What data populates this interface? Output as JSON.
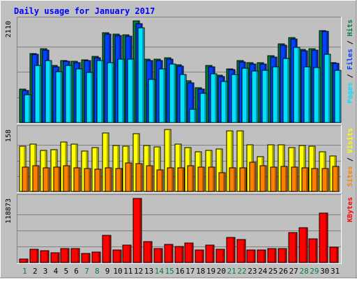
{
  "chart_data": [
    {
      "type": "bar",
      "panel": "pages-files-hits",
      "title": "Daily usage for January 2017",
      "ylabel_parts": [
        "Pages",
        " / ",
        "Files",
        " / ",
        "Hits"
      ],
      "max_label": "2110",
      "ylim": [
        0,
        2110
      ],
      "grid": true,
      "categories": [
        "1",
        "2",
        "3",
        "4",
        "5",
        "6",
        "7",
        "8",
        "9",
        "10",
        "11",
        "12",
        "13",
        "14",
        "15",
        "16",
        "17",
        "18",
        "19",
        "20",
        "21",
        "22",
        "23",
        "24",
        "25",
        "26",
        "27",
        "28",
        "29",
        "30",
        "31"
      ],
      "weekend_days": [
        "1",
        "7",
        "8",
        "14",
        "15",
        "21",
        "22",
        "28",
        "29"
      ],
      "series": [
        {
          "name": "Hits",
          "color": "#008040",
          "values": [
            690,
            1430,
            1530,
            1180,
            1290,
            1270,
            1300,
            1370,
            1870,
            1840,
            1820,
            2110,
            1310,
            1310,
            1350,
            1200,
            860,
            720,
            1180,
            980,
            1120,
            1280,
            1240,
            1240,
            1390,
            1630,
            1770,
            1520,
            1530,
            1910,
            1250
          ]
        },
        {
          "name": "Files",
          "color": "#0040ff",
          "values": [
            660,
            1410,
            1500,
            1150,
            1270,
            1240,
            1280,
            1340,
            1840,
            1810,
            1790,
            2050,
            1290,
            1290,
            1320,
            1170,
            830,
            700,
            1150,
            950,
            1100,
            1260,
            1210,
            1220,
            1360,
            1600,
            1740,
            1490,
            1500,
            1890,
            1230
          ]
        },
        {
          "name": "Pages",
          "color": "#00e0ff",
          "values": [
            580,
            1190,
            1290,
            1060,
            1180,
            1110,
            1040,
            1280,
            1250,
            1310,
            1310,
            1960,
            900,
            1110,
            1210,
            990,
            280,
            600,
            1010,
            850,
            1000,
            1130,
            1070,
            1080,
            1150,
            1330,
            1560,
            1160,
            1140,
            1420,
            1090
          ]
        }
      ]
    },
    {
      "type": "bar",
      "panel": "visits-sites",
      "ylabel_parts": [
        "Sites",
        " / ",
        "Visits"
      ],
      "max_label": "158",
      "ylim": [
        0,
        158
      ],
      "grid": true,
      "categories": [
        "1",
        "2",
        "3",
        "4",
        "5",
        "6",
        "7",
        "8",
        "9",
        "10",
        "11",
        "12",
        "13",
        "14",
        "15",
        "16",
        "17",
        "18",
        "19",
        "20",
        "21",
        "22",
        "23",
        "24",
        "25",
        "26",
        "27",
        "28",
        "29",
        "30",
        "31"
      ],
      "series": [
        {
          "name": "Visits",
          "color": "#ffff00",
          "values": [
            115,
            120,
            104,
            107,
            126,
            121,
            103,
            111,
            149,
            117,
            116,
            148,
            118,
            114,
            158,
            120,
            111,
            101,
            104,
            108,
            154,
            154,
            119,
            89,
            119,
            119,
            112,
            117,
            116,
            102,
            91
          ]
        },
        {
          "name": "Sites",
          "color": "#ff8000",
          "values": [
            62,
            66,
            60,
            62,
            66,
            61,
            58,
            56,
            61,
            58,
            73,
            71,
            66,
            55,
            60,
            60,
            66,
            63,
            63,
            48,
            60,
            60,
            75,
            65,
            63,
            64,
            62,
            61,
            58,
            59,
            64
          ]
        }
      ]
    },
    {
      "type": "bar",
      "panel": "kbytes",
      "ylabel_parts": [
        "KBytes"
      ],
      "max_label": "118873",
      "ylim": [
        0,
        118873
      ],
      "grid": true,
      "categories": [
        "1",
        "2",
        "3",
        "4",
        "5",
        "6",
        "7",
        "8",
        "9",
        "10",
        "11",
        "12",
        "13",
        "14",
        "15",
        "16",
        "17",
        "18",
        "19",
        "20",
        "21",
        "22",
        "23",
        "24",
        "25",
        "26",
        "27",
        "28",
        "29",
        "30",
        "31"
      ],
      "series": [
        {
          "name": "KBytes",
          "color": "#ff0000",
          "values": [
            7000,
            24000,
            22000,
            18000,
            26000,
            26000,
            17000,
            20000,
            50000,
            23000,
            32000,
            118873,
            39000,
            26000,
            34000,
            30000,
            36000,
            23000,
            32000,
            24000,
            46000,
            42000,
            23000,
            23000,
            26000,
            26000,
            55000,
            64000,
            44000,
            92000,
            29000
          ]
        }
      ]
    }
  ]
}
